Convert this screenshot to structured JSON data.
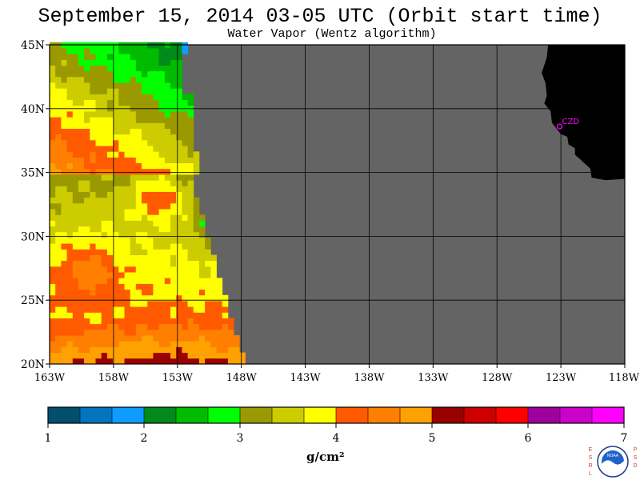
{
  "header": {
    "title": "September 15, 2014  03-05 UTC  (Orbit start time)",
    "subtitle": "Water Vapor (Wentz algorithm)"
  },
  "map": {
    "lat_labels": [
      "45N",
      "40N",
      "35N",
      "30N",
      "25N",
      "20N"
    ],
    "lat_values": [
      45,
      40,
      35,
      30,
      25,
      20
    ],
    "lon_labels": [
      "163W",
      "158W",
      "153W",
      "148W",
      "143W",
      "138W",
      "133W",
      "128W",
      "123W",
      "118W"
    ],
    "lon_values": [
      -163,
      -158,
      -153,
      -148,
      -143,
      -138,
      -133,
      -128,
      -123,
      -118
    ],
    "lon_range": [
      -163,
      -118
    ],
    "lat_range": [
      20,
      45
    ],
    "station_label": "CZD",
    "land_color": "#000000",
    "nodata_color": "#646464"
  },
  "colorbar": {
    "tick_labels": [
      "1",
      "2",
      "3",
      "4",
      "5",
      "6",
      "7"
    ],
    "range": [
      1,
      7
    ],
    "colors": [
      "#004f6f",
      "#0074bf",
      "#0f9bff",
      "#008a1a",
      "#00bb00",
      "#00ff00",
      "#9a9a00",
      "#cccc00",
      "#ffff00",
      "#ff5a00",
      "#ff7f00",
      "#ffa100",
      "#9a0000",
      "#cc0000",
      "#ff0000",
      "#9e009e",
      "#cc00cc",
      "#ff00ff"
    ],
    "units": "g/cm²"
  },
  "logo": {
    "left_letters": "ESRL",
    "right_letters": "PSD",
    "center_text": "NOAA"
  }
}
